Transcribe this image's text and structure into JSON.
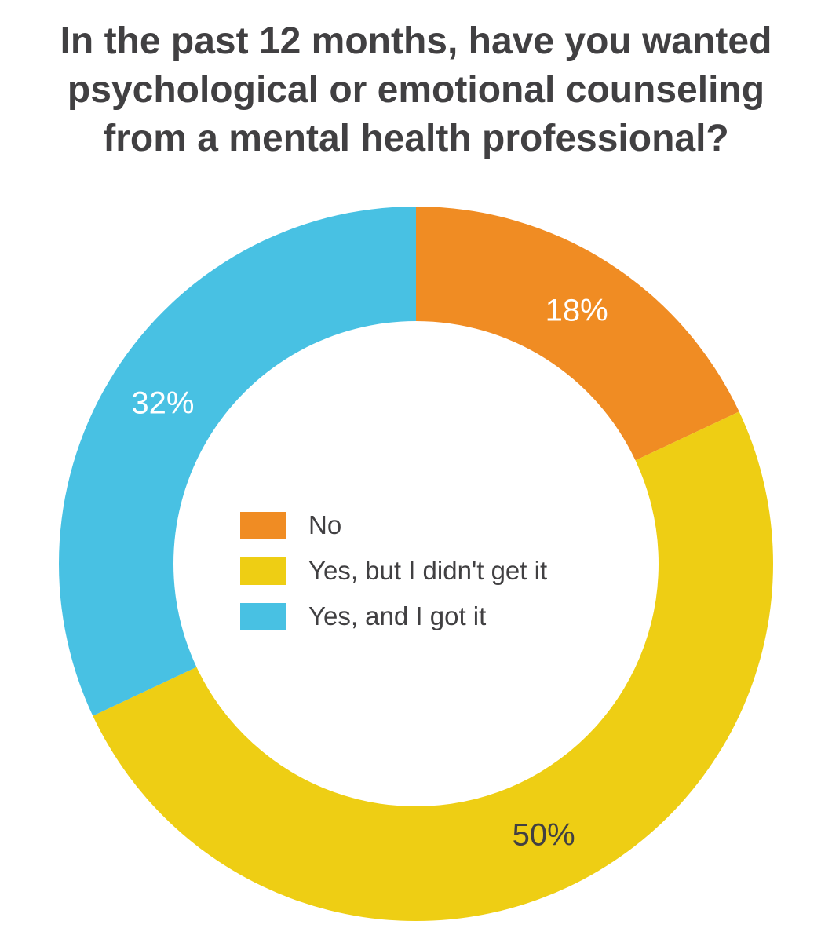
{
  "chart_data": {
    "type": "pie",
    "title_lines": [
      "In the past 12 months, have you wanted",
      "psychological or emotional counseling",
      "from a mental health professional?"
    ],
    "slices": [
      {
        "label": "No",
        "value": 18,
        "display": "18%",
        "color": "#F08C23",
        "text_color": "#ffffff"
      },
      {
        "label": "Yes, but I didn't get it",
        "value": 50,
        "display": "50%",
        "color": "#EECE14",
        "text_color": "#414042"
      },
      {
        "label": "Yes, and I got it",
        "value": 32,
        "display": "32%",
        "color": "#48C1E3",
        "text_color": "#ffffff"
      }
    ],
    "legend_placement": "center"
  }
}
